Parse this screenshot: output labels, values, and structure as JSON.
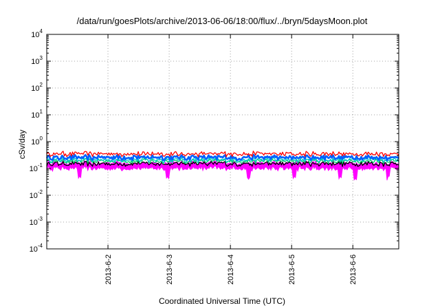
{
  "chart_data": {
    "type": "line",
    "title": "/data/run/goesPlots/archive/2013-06-06/18:00/flux/../bryn/5daysMoon.plot",
    "xlabel": "Coordinated Universal Time (UTC)",
    "ylabel": "cSv/day",
    "y_scale": "log",
    "ylim": [
      0.0001,
      10000
    ],
    "y_ticks": [
      {
        "base": "10",
        "exp": "-4"
      },
      {
        "base": "10",
        "exp": "-3"
      },
      {
        "base": "10",
        "exp": "-2"
      },
      {
        "base": "10",
        "exp": "-1"
      },
      {
        "base": "10",
        "exp": "0"
      },
      {
        "base": "10",
        "exp": "1"
      },
      {
        "base": "10",
        "exp": "2"
      },
      {
        "base": "10",
        "exp": "3"
      },
      {
        "base": "10",
        "exp": "4"
      }
    ],
    "xlim": [
      "2013-06-01 00:00",
      "2013-06-06 18:00"
    ],
    "x_ticks": [
      "2013-6-2",
      "2013-6-3",
      "2013-6-4",
      "2013-6-5",
      "2013-6-6"
    ],
    "grid": true,
    "legend": "none",
    "series": [
      {
        "color": "#ff00ff",
        "style": "filled band",
        "typical_low": 0.1,
        "typical_high": 0.16,
        "dips_to": 0.04
      },
      {
        "color": "#000000",
        "style": "line",
        "typical": 0.15
      },
      {
        "color": "#00cc66",
        "style": "line",
        "typical": 0.19
      },
      {
        "color": "#00c8c8",
        "style": "line",
        "typical": 0.21
      },
      {
        "color": "#0060ff",
        "style": "thick line",
        "typical": 0.26
      },
      {
        "color": "#ff0000",
        "style": "line",
        "typical": 0.35
      }
    ]
  }
}
